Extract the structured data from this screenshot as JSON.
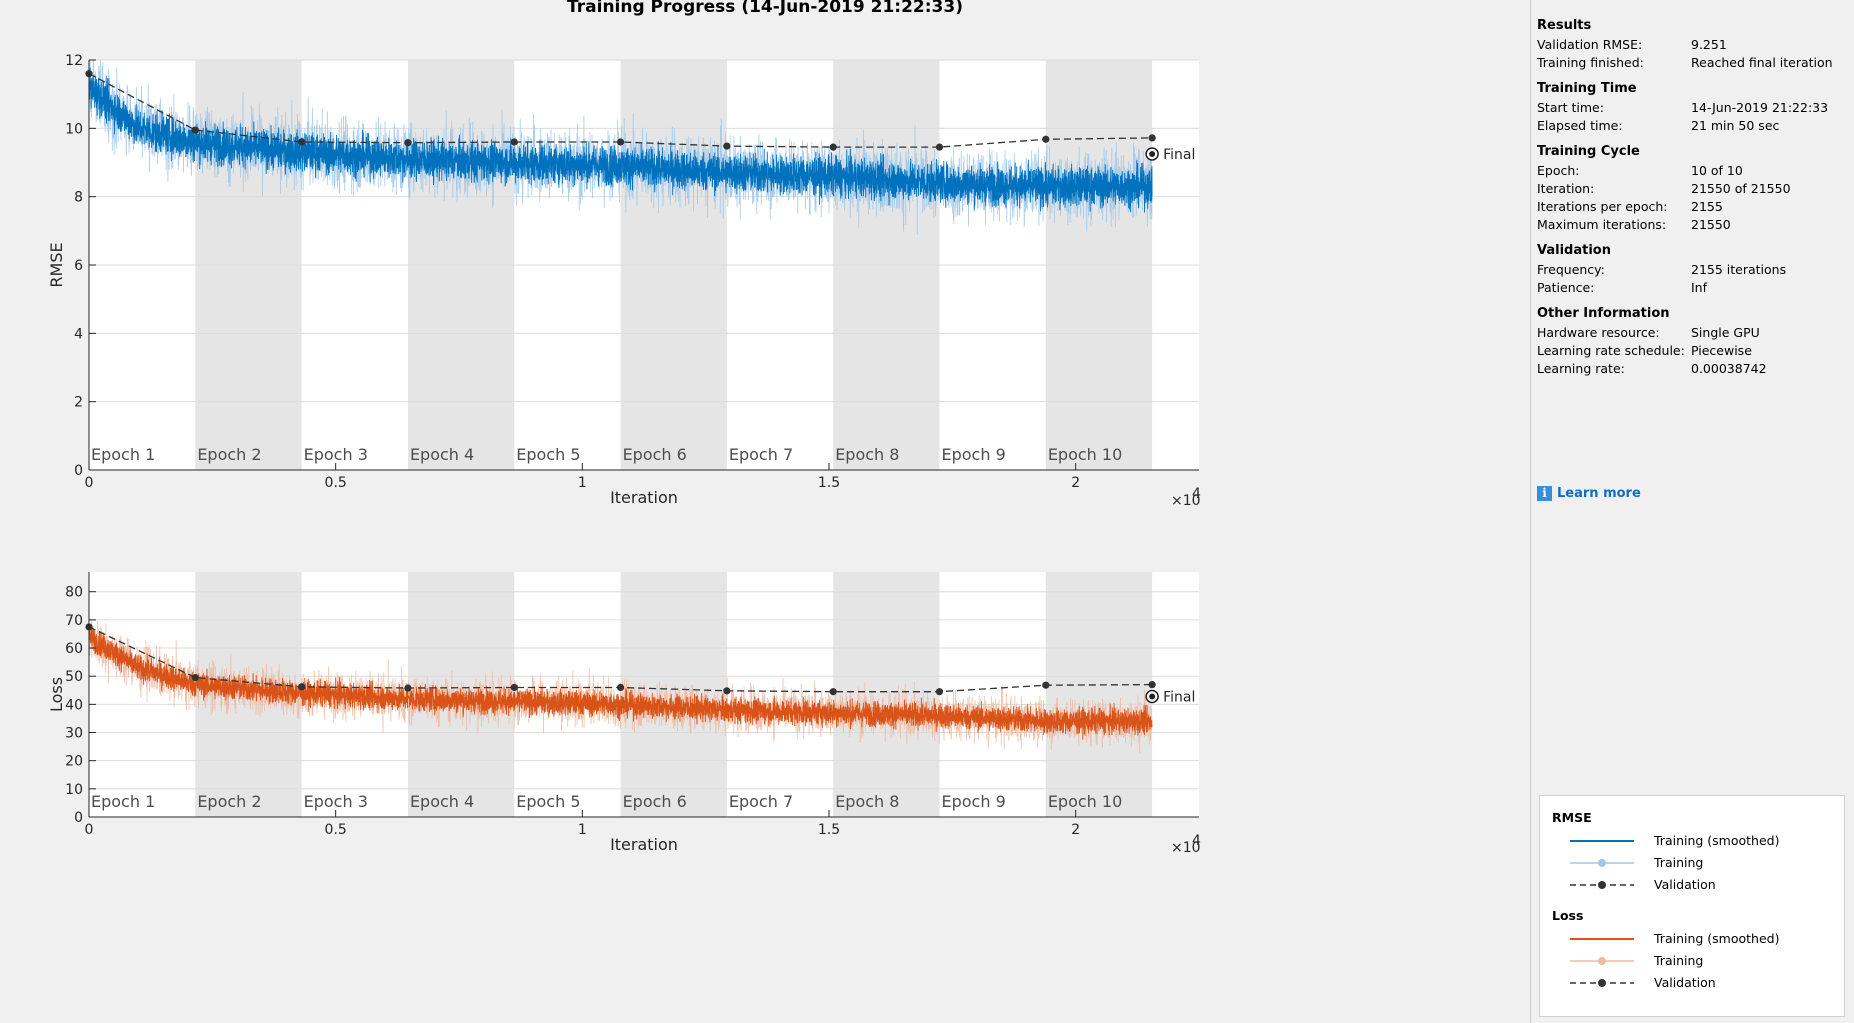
{
  "title": "Training Progress (14-Jun-2019 21:22:33)",
  "epochs": [
    "Epoch 1",
    "Epoch 2",
    "Epoch 3",
    "Epoch 4",
    "Epoch 5",
    "Epoch 6",
    "Epoch 7",
    "Epoch 8",
    "Epoch 9",
    "Epoch 10"
  ],
  "final_label": "Final",
  "x_exponent": "×10",
  "x_exponent_power": "4",
  "colors": {
    "rmse": "#0072bd",
    "rmse_light": "#9dc7ea",
    "loss": "#d95319",
    "loss_light": "#f0b9a0",
    "validation": "#333333",
    "epoch_shade": "#e5e5e5"
  },
  "chart_data": [
    {
      "type": "line",
      "ylabel": "RMSE",
      "xlabel": "Iteration",
      "xlim": [
        0,
        22500
      ],
      "ylim": [
        0,
        12
      ],
      "xticks": [
        0,
        5000,
        10000,
        15000,
        20000
      ],
      "xtick_labels": [
        "0",
        "0.5",
        "1",
        "1.5",
        "2"
      ],
      "yticks": [
        0,
        2,
        4,
        6,
        8,
        10,
        12
      ],
      "grid": true,
      "total_iterations": 21550,
      "iterations_per_epoch": 2155,
      "series": [
        {
          "name": "Training (smoothed)",
          "x": [
            0,
            1000,
            2155,
            4310,
            6465,
            8620,
            10775,
            12930,
            15085,
            17240,
            19395,
            21550
          ],
          "values": [
            11.2,
            10.0,
            9.6,
            9.3,
            9.1,
            9.0,
            8.9,
            8.7,
            8.6,
            8.4,
            8.3,
            8.3
          ]
        },
        {
          "name": "Training",
          "x": [
            0,
            1000,
            2155,
            4310,
            6465,
            8620,
            10775,
            12930,
            15085,
            17240,
            19395,
            21550
          ],
          "values": [
            11.2,
            10.0,
            9.6,
            9.3,
            9.1,
            9.0,
            8.9,
            8.7,
            8.6,
            8.4,
            8.3,
            8.3
          ]
        },
        {
          "name": "Validation",
          "x": [
            0,
            2155,
            4310,
            6465,
            8620,
            10775,
            12930,
            15085,
            17240,
            19395,
            21550
          ],
          "values": [
            11.6,
            9.95,
            9.6,
            9.58,
            9.6,
            9.6,
            9.48,
            9.45,
            9.45,
            9.68,
            9.72
          ]
        }
      ],
      "final": {
        "x": 21550,
        "y": 9.25
      }
    },
    {
      "type": "line",
      "ylabel": "Loss",
      "xlabel": "Iteration",
      "xlim": [
        0,
        22500
      ],
      "ylim": [
        0,
        87
      ],
      "xticks": [
        0,
        5000,
        10000,
        15000,
        20000
      ],
      "xtick_labels": [
        "0",
        "0.5",
        "1",
        "1.5",
        "2"
      ],
      "yticks": [
        0,
        10,
        20,
        30,
        40,
        50,
        60,
        70,
        80
      ],
      "grid": true,
      "total_iterations": 21550,
      "iterations_per_epoch": 2155,
      "series": [
        {
          "name": "Training (smoothed)",
          "x": [
            0,
            1000,
            2155,
            4310,
            6465,
            8620,
            10775,
            12930,
            15085,
            17240,
            19395,
            21550
          ],
          "values": [
            64,
            53,
            47,
            44,
            42,
            41,
            40,
            38,
            37,
            36,
            34,
            34
          ]
        },
        {
          "name": "Training",
          "x": [
            0,
            1000,
            2155,
            4310,
            6465,
            8620,
            10775,
            12930,
            15085,
            17240,
            19395,
            21550
          ],
          "values": [
            64,
            53,
            47,
            44,
            42,
            41,
            40,
            38,
            37,
            36,
            34,
            34
          ]
        },
        {
          "name": "Validation",
          "x": [
            0,
            2155,
            4310,
            6465,
            8620,
            10775,
            12930,
            15085,
            17240,
            19395,
            21550
          ],
          "values": [
            67.5,
            49.5,
            46.2,
            45.8,
            46,
            46,
            44.8,
            44.5,
            44.5,
            46.8,
            47
          ]
        }
      ],
      "final": {
        "x": 21550,
        "y": 42.8
      }
    }
  ],
  "results": {
    "sections": [
      {
        "title": "Results",
        "rows": [
          {
            "key": "Validation RMSE:",
            "value": "9.251"
          },
          {
            "key": "Training finished:",
            "value": "Reached final iteration"
          }
        ]
      },
      {
        "title": "Training Time",
        "rows": [
          {
            "key": "Start time:",
            "value": "14-Jun-2019 21:22:33"
          },
          {
            "key": "Elapsed time:",
            "value": "21 min 50 sec"
          }
        ]
      },
      {
        "title": "Training Cycle",
        "rows": [
          {
            "key": "Epoch:",
            "value": "10 of 10"
          },
          {
            "key": "Iteration:",
            "value": "21550 of 21550"
          },
          {
            "key": "Iterations per epoch:",
            "value": "2155"
          },
          {
            "key": "Maximum iterations:",
            "value": "21550"
          }
        ]
      },
      {
        "title": "Validation",
        "rows": [
          {
            "key": "Frequency:",
            "value": "2155 iterations"
          },
          {
            "key": "Patience:",
            "value": "Inf"
          }
        ]
      },
      {
        "title": "Other Information",
        "rows": [
          {
            "key": "Hardware resource:",
            "value": "Single GPU"
          },
          {
            "key": "Learning rate schedule:",
            "value": "Piecewise"
          },
          {
            "key": "Learning rate:",
            "value": "0.00038742"
          }
        ]
      }
    ],
    "learn_more": "Learn more"
  },
  "legend": {
    "groups": [
      {
        "title": "RMSE",
        "entries": [
          {
            "label": "Training (smoothed)",
            "style": "smoothed",
            "color": "#0072bd"
          },
          {
            "label": "Training",
            "style": "raw",
            "color": "#9dc7ea"
          },
          {
            "label": "Validation",
            "style": "validation",
            "color": "#333333"
          }
        ]
      },
      {
        "title": "Loss",
        "entries": [
          {
            "label": "Training (smoothed)",
            "style": "smoothed",
            "color": "#d95319"
          },
          {
            "label": "Training",
            "style": "raw",
            "color": "#f0b9a0"
          },
          {
            "label": "Validation",
            "style": "validation",
            "color": "#333333"
          }
        ]
      }
    ]
  }
}
